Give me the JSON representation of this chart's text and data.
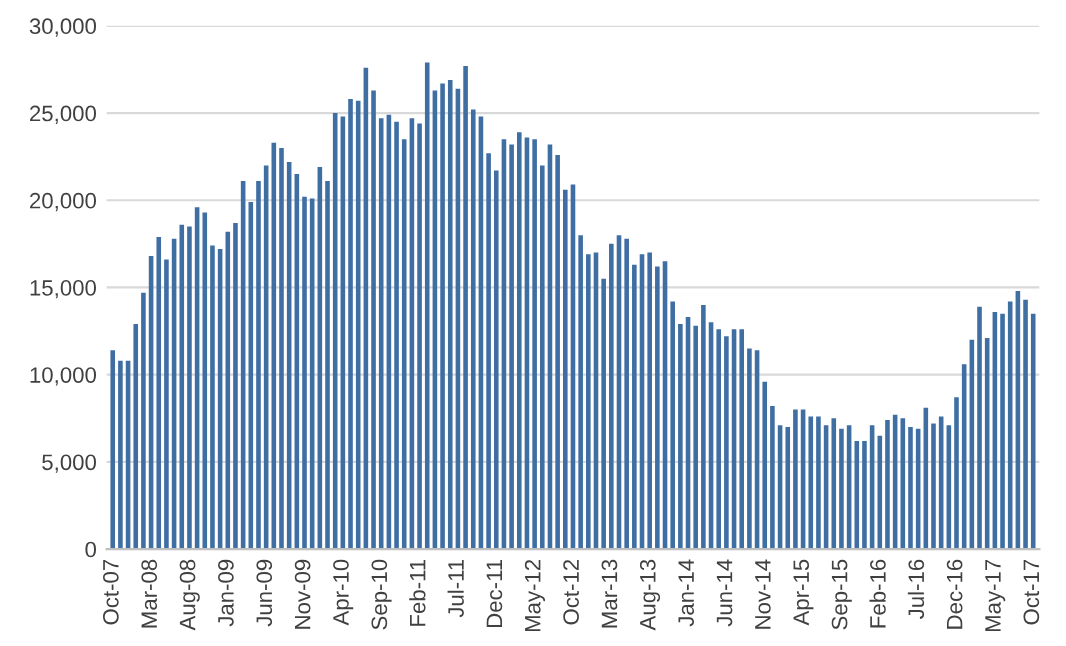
{
  "chart_data": {
    "type": "bar",
    "categories": [
      "Oct-07",
      null,
      null,
      null,
      null,
      "Mar-08",
      null,
      null,
      null,
      null,
      "Aug-08",
      null,
      null,
      null,
      null,
      "Jan-09",
      null,
      null,
      null,
      null,
      "Jun-09",
      null,
      null,
      null,
      null,
      "Nov-09",
      null,
      null,
      null,
      null,
      "Apr-10",
      null,
      null,
      null,
      null,
      "Sep-10",
      null,
      null,
      null,
      null,
      "Feb-11",
      null,
      null,
      null,
      null,
      "Jul-11",
      null,
      null,
      null,
      null,
      "Dec-11",
      null,
      null,
      null,
      null,
      "May-12",
      null,
      null,
      null,
      null,
      "Oct-12",
      null,
      null,
      null,
      null,
      "Mar-13",
      null,
      null,
      null,
      null,
      "Aug-13",
      null,
      null,
      null,
      null,
      "Jan-14",
      null,
      null,
      null,
      null,
      "Jun-14",
      null,
      null,
      null,
      null,
      "Nov-14",
      null,
      null,
      null,
      null,
      "Apr-15",
      null,
      null,
      null,
      null,
      "Sep-15",
      null,
      null,
      null,
      null,
      "Feb-16",
      null,
      null,
      null,
      null,
      "Jul-16",
      null,
      null,
      null,
      null,
      "Dec-16",
      null,
      null,
      null,
      null,
      "May-17",
      null,
      null,
      null,
      null,
      "Oct-17"
    ],
    "values": [
      11400,
      10800,
      10800,
      12900,
      14700,
      16800,
      17900,
      16600,
      17800,
      18600,
      18500,
      19600,
      19300,
      17400,
      17200,
      18200,
      18700,
      21100,
      19900,
      21100,
      22000,
      23300,
      23000,
      22200,
      21500,
      20200,
      20100,
      21900,
      21100,
      25000,
      24800,
      25800,
      25700,
      27600,
      26300,
      24700,
      24900,
      24500,
      23500,
      24700,
      24400,
      27900,
      26300,
      26700,
      26900,
      26400,
      27700,
      25200,
      24800,
      22700,
      21700,
      23500,
      23200,
      23900,
      23600,
      23500,
      22000,
      23200,
      22600,
      20600,
      20900,
      18000,
      16900,
      17000,
      15500,
      17500,
      18000,
      17800,
      16300,
      16900,
      17000,
      16200,
      16500,
      14200,
      12900,
      13300,
      12800,
      14000,
      13000,
      12600,
      12200,
      12600,
      12600,
      11500,
      11400,
      9600,
      8200,
      7100,
      7000,
      8000,
      8000,
      7600,
      7600,
      7100,
      7500,
      6900,
      7100,
      6200,
      6200,
      7100,
      6500,
      7400,
      7700,
      7500,
      7000,
      6900,
      8100,
      7200,
      7600,
      7100,
      8700,
      10600,
      12000,
      13900,
      12100,
      13600,
      13500,
      14200,
      14800,
      14300,
      13500
    ],
    "color": "#3f6ea3",
    "ylim": [
      0,
      30000
    ],
    "yticks": [
      0,
      {
        "value": 5000,
        "label": "5,000"
      },
      {
        "value": 10000,
        "label": "10,000"
      },
      {
        "value": 15000,
        "label": "15,000"
      },
      {
        "value": 20000,
        "label": "20,000"
      },
      {
        "value": 25000,
        "label": "25,000"
      },
      {
        "value": 30000,
        "label": "30,000"
      }
    ],
    "grid": "y"
  }
}
